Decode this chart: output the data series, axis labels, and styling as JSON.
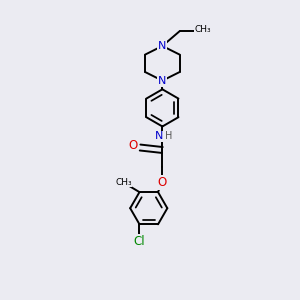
{
  "bg_color": "#ebebf2",
  "bond_color": "#000000",
  "n_color": "#0000cc",
  "o_color": "#dd0000",
  "cl_color": "#008800",
  "lw": 1.4,
  "xlim": [
    0,
    10
  ],
  "ylim": [
    0,
    12
  ]
}
